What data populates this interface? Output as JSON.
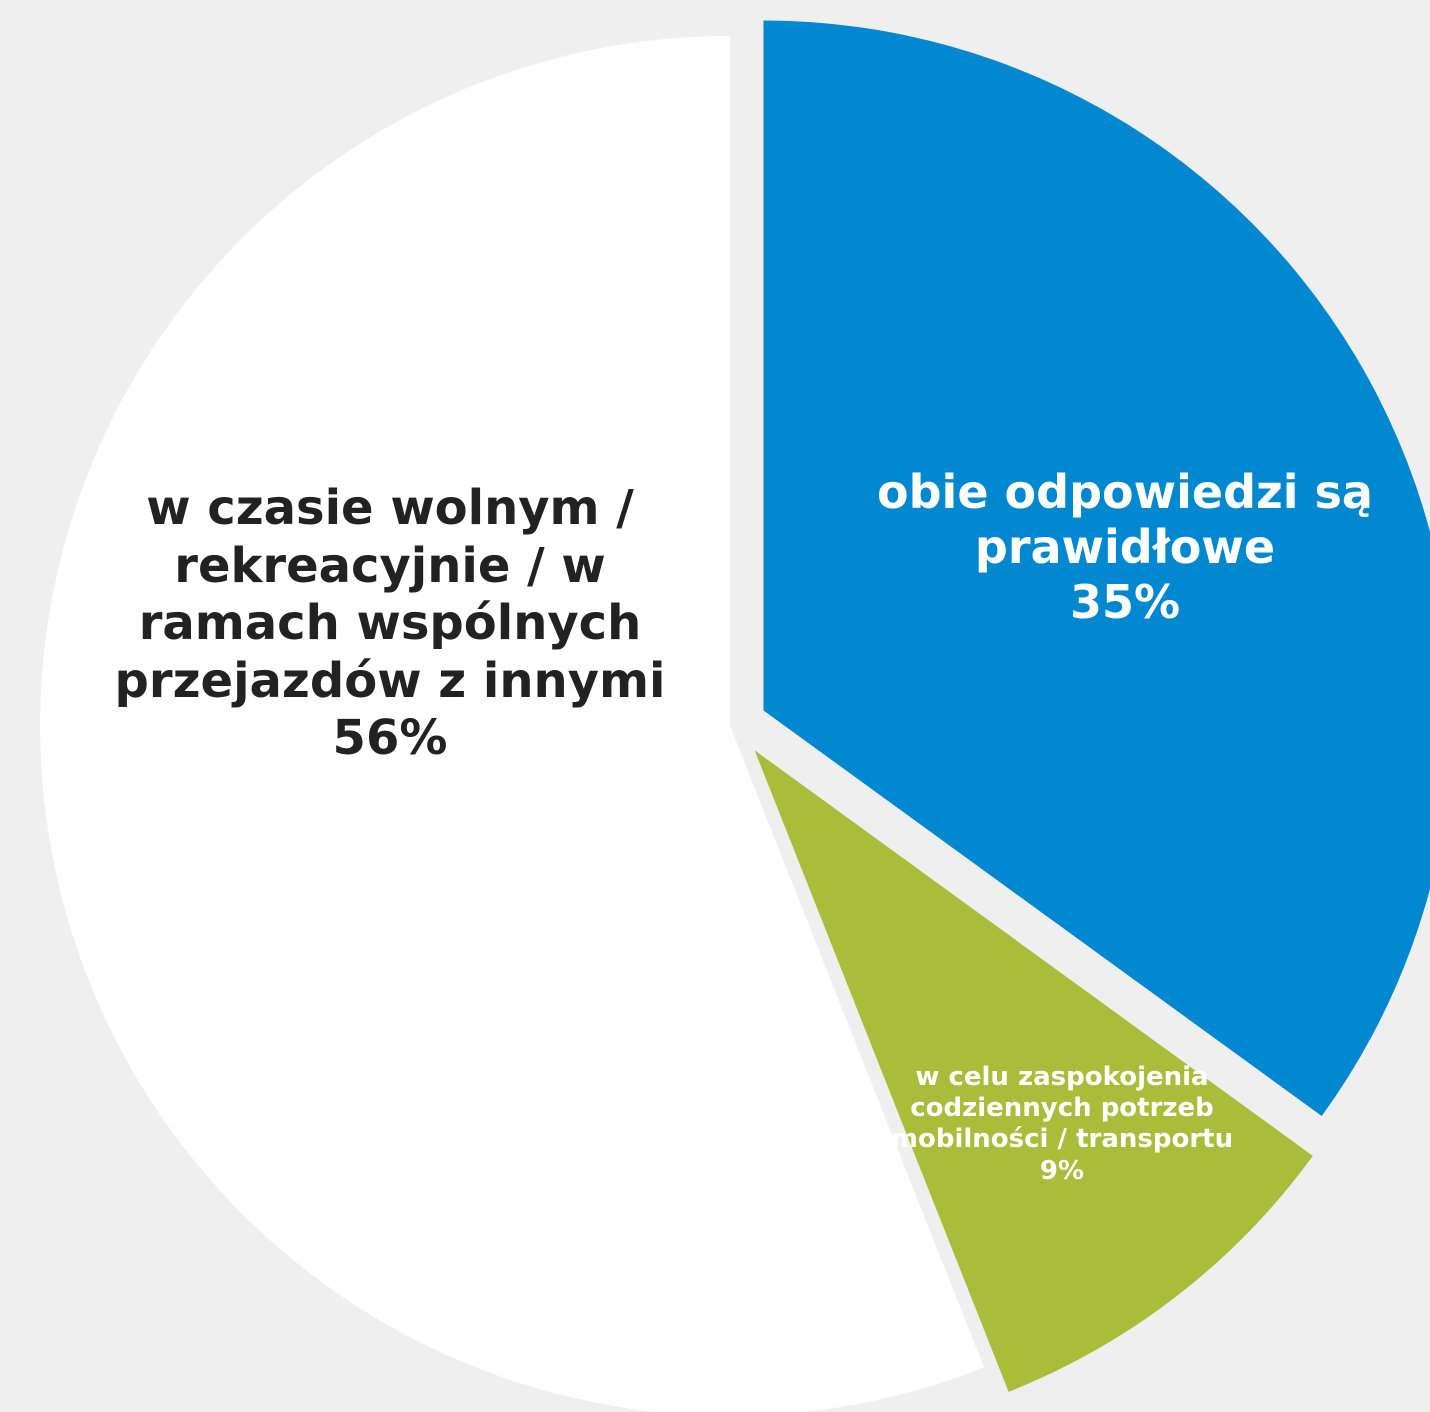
{
  "chart_data": {
    "type": "pie",
    "categories": [
      "obie odpowiedzi są prawidłowe",
      "w celu zaspokojenia codziennych potrzeb mobilności / transportu",
      "w czasie wolnym / rekreacyjnie / w ramach wspólnych przejazdów z innymi"
    ],
    "values": [
      35,
      9,
      56
    ],
    "value_labels": [
      "35%",
      "9%",
      "56%"
    ],
    "colors": [
      "#0288d1",
      "#a9bd3b",
      "#ffffff"
    ]
  }
}
